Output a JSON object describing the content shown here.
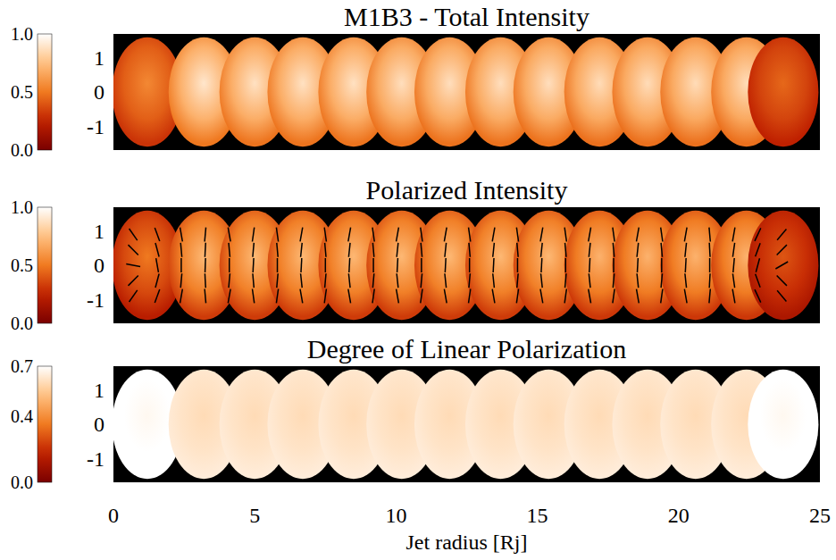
{
  "chart_data": [
    {
      "type": "image",
      "title": "M1B3 - Total Intensity",
      "xlim": [
        0,
        25
      ],
      "ylim": [
        -1.7,
        1.7
      ],
      "yticks": [
        -1,
        0,
        1
      ],
      "tick_labels": "y",
      "colorbar": {
        "range": [
          0,
          1
        ],
        "ticks": [
          {
            "value": 0,
            "label": "0.0"
          },
          {
            "value": 0.5,
            "label": "0.5"
          },
          {
            "value": 1,
            "label": "1.0"
          }
        ]
      },
      "knots": {
        "x": [
          1.2,
          3.2,
          5.0,
          6.7,
          8.5,
          10.2,
          11.9,
          13.7,
          15.4,
          17.2,
          18.9,
          20.6,
          22.4,
          23.7
        ],
        "values": [
          0.55,
          0.9,
          0.88,
          0.88,
          0.88,
          0.87,
          0.87,
          0.87,
          0.87,
          0.86,
          0.86,
          0.86,
          0.86,
          0.45
        ]
      }
    },
    {
      "type": "image",
      "title": "Polarized Intensity",
      "xlim": [
        0,
        25
      ],
      "ylim": [
        -1.7,
        1.7
      ],
      "yticks": [
        -1,
        0,
        1
      ],
      "tick_labels": "y",
      "colorbar": {
        "range": [
          0,
          1
        ],
        "ticks": [
          {
            "value": 0,
            "label": "0.0"
          },
          {
            "value": 0.5,
            "label": "0.5"
          },
          {
            "value": 1,
            "label": "1.0"
          }
        ]
      },
      "knots": {
        "x": [
          1.2,
          3.2,
          5.0,
          6.7,
          8.5,
          10.2,
          11.9,
          13.7,
          15.4,
          17.2,
          18.9,
          20.6,
          22.4,
          23.7
        ],
        "values": [
          0.5,
          0.72,
          0.72,
          0.72,
          0.72,
          0.72,
          0.72,
          0.72,
          0.72,
          0.7,
          0.7,
          0.7,
          0.7,
          0.4
        ]
      },
      "vectors": {
        "x": [
          0.7,
          1.55,
          2.4,
          3.25,
          4.1,
          4.95,
          5.8,
          6.65,
          7.5,
          8.35,
          9.2,
          10.05,
          10.9,
          11.75,
          12.6,
          13.45,
          14.3,
          15.15,
          16.0,
          16.85,
          17.7,
          18.55,
          19.4,
          20.25,
          21.1,
          21.95,
          22.8,
          23.65
        ],
        "y": [
          0.9,
          0.45,
          0,
          -0.45,
          -0.9
        ],
        "angles": [
          [
            -35,
            -20,
            -10,
            5,
            -10,
            8,
            -8,
            10,
            -8,
            10,
            -8,
            10,
            -8,
            10,
            -8,
            10,
            -8,
            10,
            -8,
            10,
            -8,
            10,
            -8,
            10,
            -5,
            10,
            25,
            40
          ],
          [
            -45,
            -15,
            -5,
            3,
            -5,
            5,
            -5,
            6,
            -5,
            6,
            -5,
            6,
            -5,
            6,
            -5,
            6,
            -5,
            6,
            -5,
            6,
            -5,
            6,
            -5,
            6,
            -3,
            8,
            20,
            45
          ],
          [
            -80,
            -10,
            0,
            2,
            0,
            3,
            0,
            3,
            0,
            3,
            0,
            3,
            0,
            3,
            0,
            3,
            0,
            3,
            0,
            3,
            0,
            3,
            0,
            3,
            0,
            5,
            15,
            60
          ],
          [
            45,
            15,
            5,
            -3,
            5,
            -5,
            5,
            -6,
            5,
            -6,
            5,
            -6,
            5,
            -6,
            5,
            -6,
            5,
            -6,
            5,
            -6,
            5,
            -6,
            5,
            -6,
            3,
            -8,
            -20,
            -45
          ],
          [
            35,
            20,
            10,
            -5,
            10,
            -8,
            8,
            -10,
            8,
            -10,
            8,
            -10,
            8,
            -10,
            8,
            -10,
            8,
            -10,
            8,
            -10,
            8,
            -10,
            8,
            -10,
            5,
            -10,
            -25,
            -40
          ]
        ]
      }
    },
    {
      "type": "image",
      "title": "Degree of Linear Polarization",
      "xlim": [
        0,
        25
      ],
      "xticks": [
        0,
        5,
        10,
        15,
        20,
        25
      ],
      "xlabel": "Jet radius [Rj]",
      "ylim": [
        -1.7,
        1.7
      ],
      "yticks": [
        -1,
        0,
        1
      ],
      "colorbar": {
        "range": [
          0,
          0.7
        ],
        "ticks": [
          {
            "value": 0,
            "label": "0.0"
          },
          {
            "value": 0.4,
            "label": "0.4"
          },
          {
            "value": 0.7,
            "label": "0.7"
          }
        ]
      },
      "knots": {
        "x": [
          1.2,
          3.2,
          5.0,
          6.7,
          8.5,
          10.2,
          11.9,
          13.7,
          15.4,
          17.2,
          18.9,
          20.6,
          22.4,
          23.7
        ],
        "values": [
          0.68,
          0.6,
          0.6,
          0.6,
          0.6,
          0.6,
          0.6,
          0.6,
          0.6,
          0.6,
          0.6,
          0.6,
          0.6,
          0.68
        ]
      }
    }
  ]
}
